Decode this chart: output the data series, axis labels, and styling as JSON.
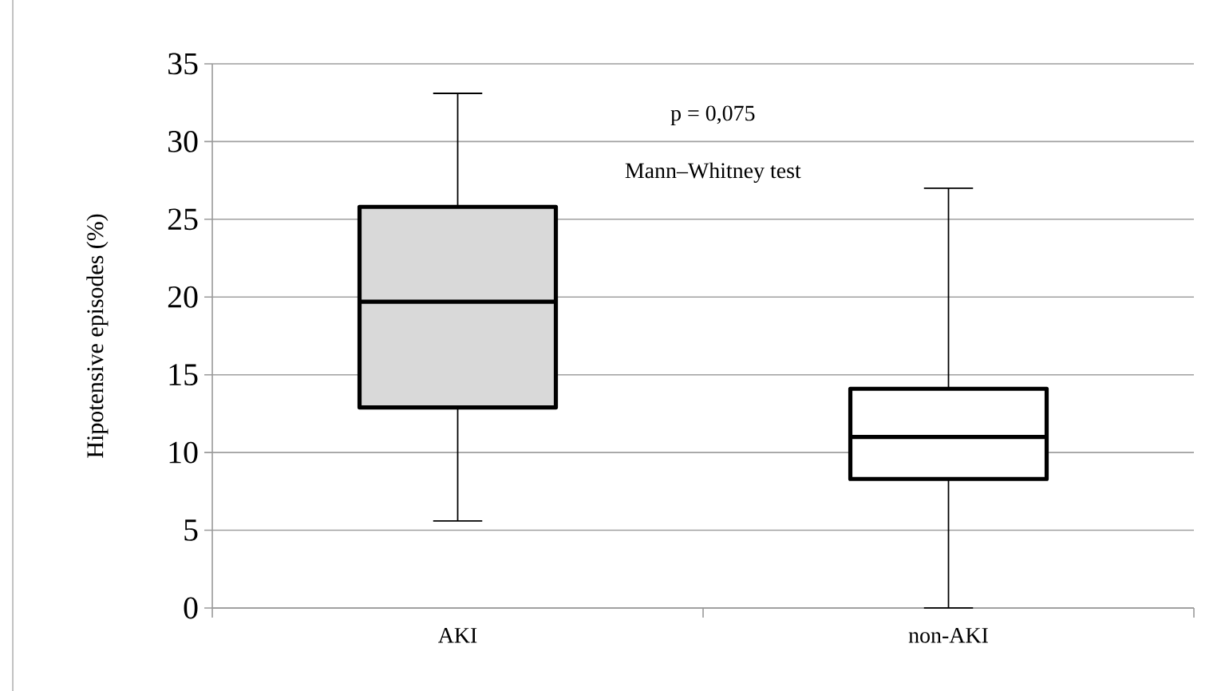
{
  "chart_data": {
    "type": "box",
    "ylabel": "Hipotensive episodes (%)",
    "categories": [
      "AKI",
      "non-AKI"
    ],
    "boxes": [
      {
        "low": 5.6,
        "q1": 12.9,
        "median": 19.7,
        "q3": 25.8,
        "high": 33.1
      },
      {
        "low": 0,
        "q1": 8.3,
        "median": 11.0,
        "q3": 14.1,
        "high": 27.0
      }
    ],
    "colors": [
      "#d9d9d9",
      "#ffffff"
    ],
    "ylim": [
      0,
      35
    ],
    "yticks": [
      0,
      5,
      10,
      15,
      20,
      25,
      30,
      35
    ],
    "grid": "y",
    "annotations": [
      "p = 0,075",
      "Mann–Whitney test"
    ]
  }
}
